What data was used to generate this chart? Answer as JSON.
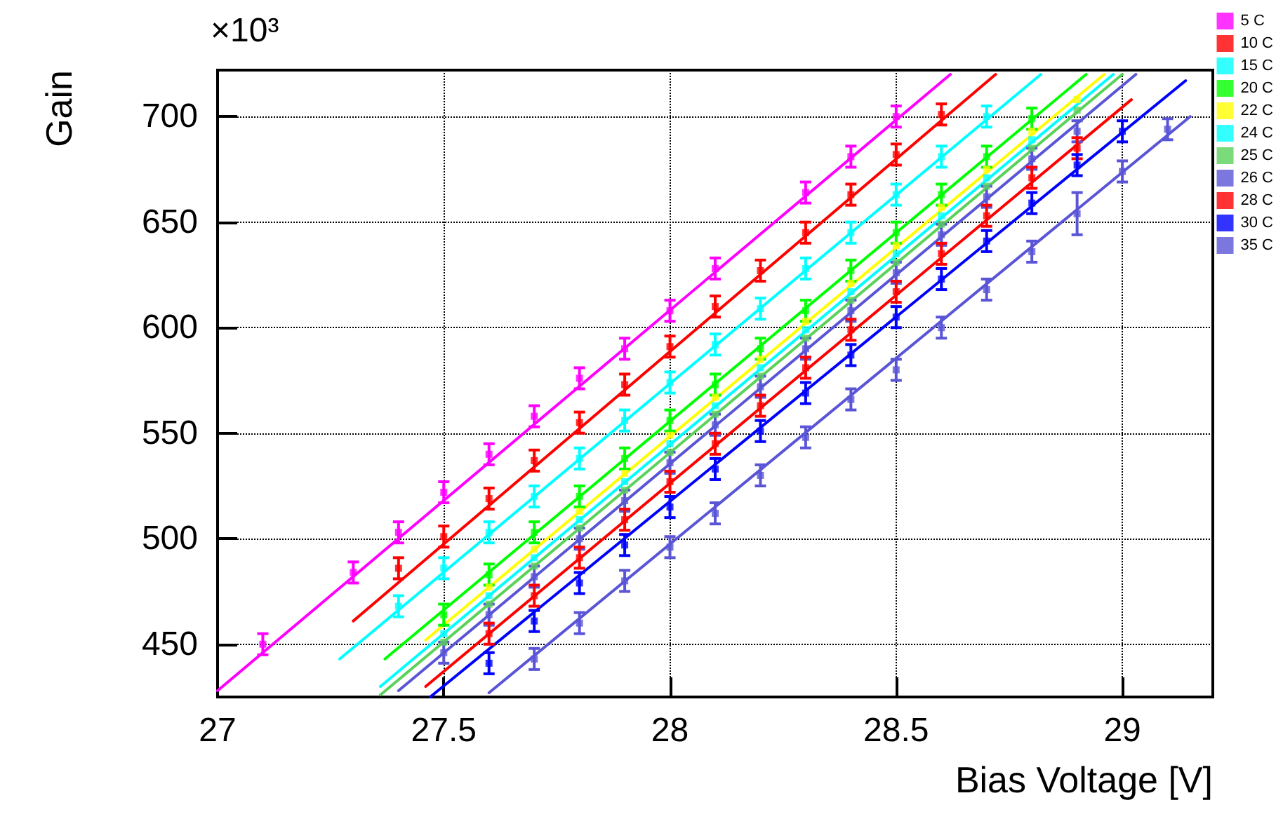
{
  "chart_data": {
    "type": "scatter",
    "xlabel": "Bias Voltage [V]",
    "ylabel": "Gain",
    "annotations": [
      "×10³"
    ],
    "xlim": [
      27,
      29.2
    ],
    "xticks": [
      27,
      27.5,
      28,
      28.5,
      29
    ],
    "ylim": [
      425,
      722
    ],
    "yticks": [
      450,
      500,
      550,
      600,
      650,
      700
    ],
    "grid": true,
    "legend": "top right",
    "marker": "square",
    "series": [
      {
        "name": "5 C",
        "color": "#ff00ff",
        "x": [
          27.1,
          27.3,
          27.4,
          27.5,
          27.6,
          27.7,
          27.8,
          27.9,
          28.0,
          28.1,
          28.3,
          28.4,
          28.5
        ],
        "values": [
          450,
          484,
          503,
          522,
          540,
          558,
          576,
          590,
          608,
          628,
          664,
          681,
          700
        ],
        "errors": [
          5,
          5,
          5,
          5,
          5,
          5,
          5,
          5,
          5,
          5,
          5,
          5,
          5
        ]
      },
      {
        "name": "10 C",
        "color": "#ff0000",
        "x": [
          27.4,
          27.5,
          27.6,
          27.7,
          27.8,
          27.9,
          28.0,
          28.1,
          28.2,
          28.3,
          28.4,
          28.5,
          28.6
        ],
        "values": [
          486,
          501,
          519,
          537,
          555,
          573,
          591,
          610,
          627,
          645,
          663,
          682,
          701
        ],
        "errors": [
          5,
          5,
          5,
          5,
          5,
          5,
          5,
          5,
          5,
          5,
          5,
          5,
          5
        ]
      },
      {
        "name": "15 C",
        "color": "#00ffff",
        "x": [
          27.4,
          27.5,
          27.6,
          27.7,
          27.8,
          27.9,
          28.0,
          28.1,
          28.2,
          28.3,
          28.4,
          28.5,
          28.6,
          28.7
        ],
        "values": [
          468,
          486,
          503,
          520,
          538,
          556,
          574,
          592,
          609,
          628,
          645,
          663,
          681,
          700
        ],
        "errors": [
          5,
          5,
          5,
          5,
          5,
          5,
          5,
          5,
          5,
          5,
          5,
          5,
          5,
          5
        ]
      },
      {
        "name": "20 C",
        "color": "#00ff00",
        "x": [
          27.5,
          27.6,
          27.7,
          27.8,
          27.9,
          28.0,
          28.1,
          28.2,
          28.3,
          28.4,
          28.5,
          28.6,
          28.7,
          28.8
        ],
        "values": [
          464,
          483,
          503,
          520,
          538,
          556,
          573,
          590,
          608,
          627,
          645,
          663,
          681,
          699
        ],
        "errors": [
          5,
          5,
          5,
          5,
          5,
          5,
          5,
          5,
          5,
          5,
          5,
          5,
          5,
          5
        ]
      },
      {
        "name": "22 C",
        "color": "#ffff00",
        "x": [
          27.6,
          27.7,
          27.8,
          27.9,
          28.0,
          28.1,
          28.2,
          28.3,
          28.4,
          28.5,
          28.6,
          28.7,
          28.8,
          28.9
        ],
        "values": [
          477,
          495,
          513,
          531,
          549,
          567,
          585,
          603,
          621,
          639,
          657,
          675,
          693,
          708
        ]
      },
      {
        "name": "24 C",
        "color": "#00ffff",
        "x": [
          27.5,
          27.6,
          27.7,
          27.8,
          27.9,
          28.0,
          28.1,
          28.2,
          28.3,
          28.4,
          28.5,
          28.6,
          28.7,
          28.8
        ],
        "values": [
          455,
          473,
          491,
          509,
          527,
          545,
          563,
          581,
          599,
          617,
          635,
          653,
          671,
          689
        ]
      },
      {
        "name": "25 C",
        "color": "#5ad25a",
        "x": [
          27.5,
          27.6,
          27.7,
          27.8,
          27.9,
          28.0,
          28.1,
          28.2,
          28.3,
          28.4,
          28.5,
          28.6,
          28.7,
          28.8,
          28.9
        ],
        "values": [
          451,
          469,
          487,
          505,
          523,
          541,
          559,
          577,
          595,
          613,
          631,
          649,
          667,
          685,
          703
        ]
      },
      {
        "name": "26 C",
        "color": "#5a55d6",
        "x": [
          27.5,
          27.6,
          27.7,
          27.8,
          27.9,
          28.0,
          28.1,
          28.2,
          28.3,
          28.4,
          28.5,
          28.6,
          28.7,
          28.8,
          28.9
        ],
        "values": [
          446,
          464,
          482,
          500,
          518,
          536,
          554,
          572,
          590,
          608,
          626,
          644,
          662,
          680,
          693
        ],
        "errors": [
          5,
          5,
          5,
          5,
          5,
          5,
          5,
          5,
          5,
          5,
          5,
          5,
          5,
          5,
          5
        ]
      },
      {
        "name": "28 C",
        "color": "#ff0000",
        "x": [
          27.6,
          27.7,
          27.8,
          27.9,
          28.0,
          28.1,
          28.2,
          28.3,
          28.4,
          28.5,
          28.6,
          28.7,
          28.8,
          28.9
        ],
        "values": [
          455,
          473,
          491,
          509,
          527,
          545,
          563,
          581,
          599,
          617,
          635,
          653,
          671,
          685
        ],
        "errors": [
          5,
          5,
          5,
          5,
          5,
          5,
          5,
          5,
          5,
          5,
          5,
          5,
          5,
          5
        ]
      },
      {
        "name": "30 C",
        "color": "#0000ff",
        "x": [
          27.6,
          27.7,
          27.8,
          27.9,
          28.0,
          28.1,
          28.2,
          28.3,
          28.4,
          28.5,
          28.6,
          28.7,
          28.8,
          28.9,
          29.0
        ],
        "values": [
          441,
          461,
          479,
          497,
          515,
          533,
          551,
          569,
          587,
          605,
          623,
          641,
          659,
          677,
          693
        ],
        "errors": [
          5,
          5,
          5,
          5,
          5,
          5,
          5,
          5,
          5,
          5,
          5,
          5,
          5,
          5,
          5
        ]
      },
      {
        "name": "35 C",
        "color": "#5a55d6",
        "x": [
          27.7,
          27.8,
          27.9,
          28.0,
          28.1,
          28.2,
          28.3,
          28.4,
          28.5,
          28.6,
          28.7,
          28.8,
          28.9,
          29.0,
          29.1
        ],
        "values": [
          443,
          460,
          480,
          496,
          512,
          530,
          548,
          566,
          580,
          600,
          618,
          636,
          654,
          674,
          694
        ],
        "errors": [
          5,
          5,
          5,
          5,
          5,
          5,
          5,
          5,
          5,
          5,
          5,
          5,
          10,
          5,
          5
        ]
      },
      {
        "type": "line",
        "marker": "none",
        "color": "#ff00ff",
        "x": [
          27.0,
          28.62
        ],
        "values": [
          428,
          720
        ]
      },
      {
        "type": "line",
        "marker": "none",
        "color": "#ff0000",
        "x": [
          27.3,
          28.72
        ],
        "values": [
          461,
          720
        ]
      },
      {
        "type": "line",
        "marker": "none",
        "color": "#00ffff",
        "x": [
          27.27,
          28.82
        ],
        "values": [
          443,
          720
        ]
      },
      {
        "type": "line",
        "marker": "none",
        "color": "#00ff00",
        "x": [
          27.37,
          28.92
        ],
        "values": [
          443,
          720
        ]
      },
      {
        "type": "line",
        "marker": "none",
        "color": "#ffff00",
        "x": [
          27.46,
          28.96
        ],
        "values": [
          452,
          720
        ]
      },
      {
        "type": "line",
        "marker": "none",
        "color": "#00ffff",
        "x": [
          27.36,
          28.98
        ],
        "values": [
          430,
          720
        ]
      },
      {
        "type": "line",
        "marker": "none",
        "color": "#5ad25a",
        "x": [
          27.36,
          29.0
        ],
        "values": [
          426,
          720
        ]
      },
      {
        "type": "line",
        "marker": "none",
        "color": "#5a55d6",
        "x": [
          27.4,
          29.03
        ],
        "values": [
          428,
          720
        ]
      },
      {
        "type": "line",
        "marker": "none",
        "color": "#ff0000",
        "x": [
          27.46,
          29.02
        ],
        "values": [
          430,
          708
        ]
      },
      {
        "type": "line",
        "marker": "none",
        "color": "#0000ff",
        "x": [
          27.47,
          29.14
        ],
        "values": [
          425,
          717
        ]
      },
      {
        "type": "line",
        "marker": "none",
        "color": "#5a55d6",
        "x": [
          27.6,
          29.15
        ],
        "values": [
          427,
          700
        ]
      }
    ]
  }
}
